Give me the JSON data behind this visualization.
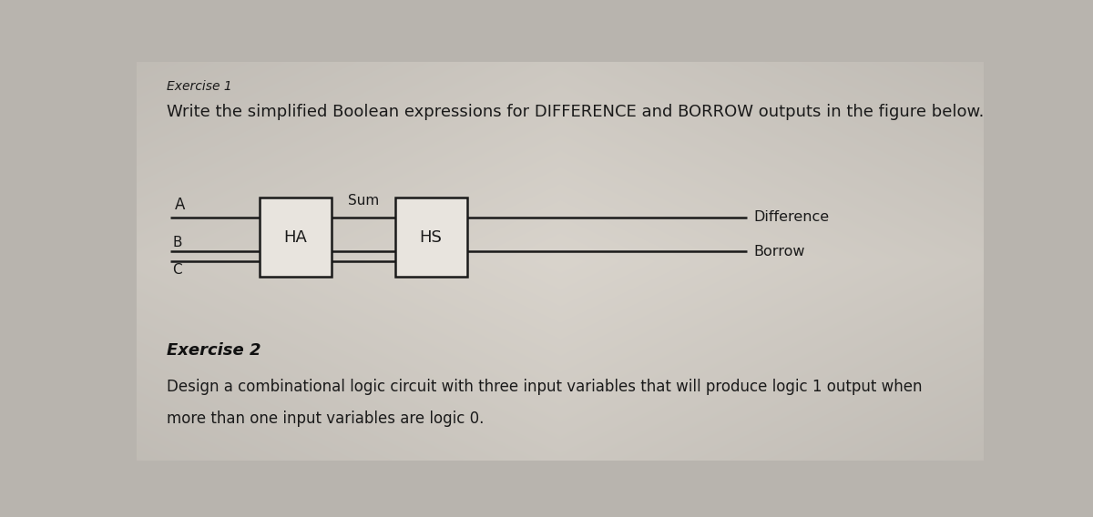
{
  "background_color": "#b8b4ae",
  "page_color": "#d4d0ca",
  "title_exercise": "Exercise 1",
  "title_text": "Write the simplified Boolean expressions for DIFFERENCE and BORROW outputs in the figure below.",
  "title_fontsize": 13,
  "exercise_label_fontsize": 10,
  "ha_label": "HA",
  "hs_label": "HS",
  "sum_label": "Sum",
  "input_a": "A",
  "input_b": "B",
  "input_c": "C",
  "diff_label": "Difference",
  "borrow_label": "Borrow",
  "exercise2_title": "Exercise 2",
  "exercise2_text1": "Design a combinational logic circuit with three input variables that will produce logic 1 output when",
  "exercise2_text2": "more than one input variables are logic 0.",
  "box_color": "#e8e4de",
  "line_color": "#1a1a1a",
  "text_color": "#1a1a1a",
  "ex2_title_color": "#111111",
  "font_family": "DejaVu Sans"
}
